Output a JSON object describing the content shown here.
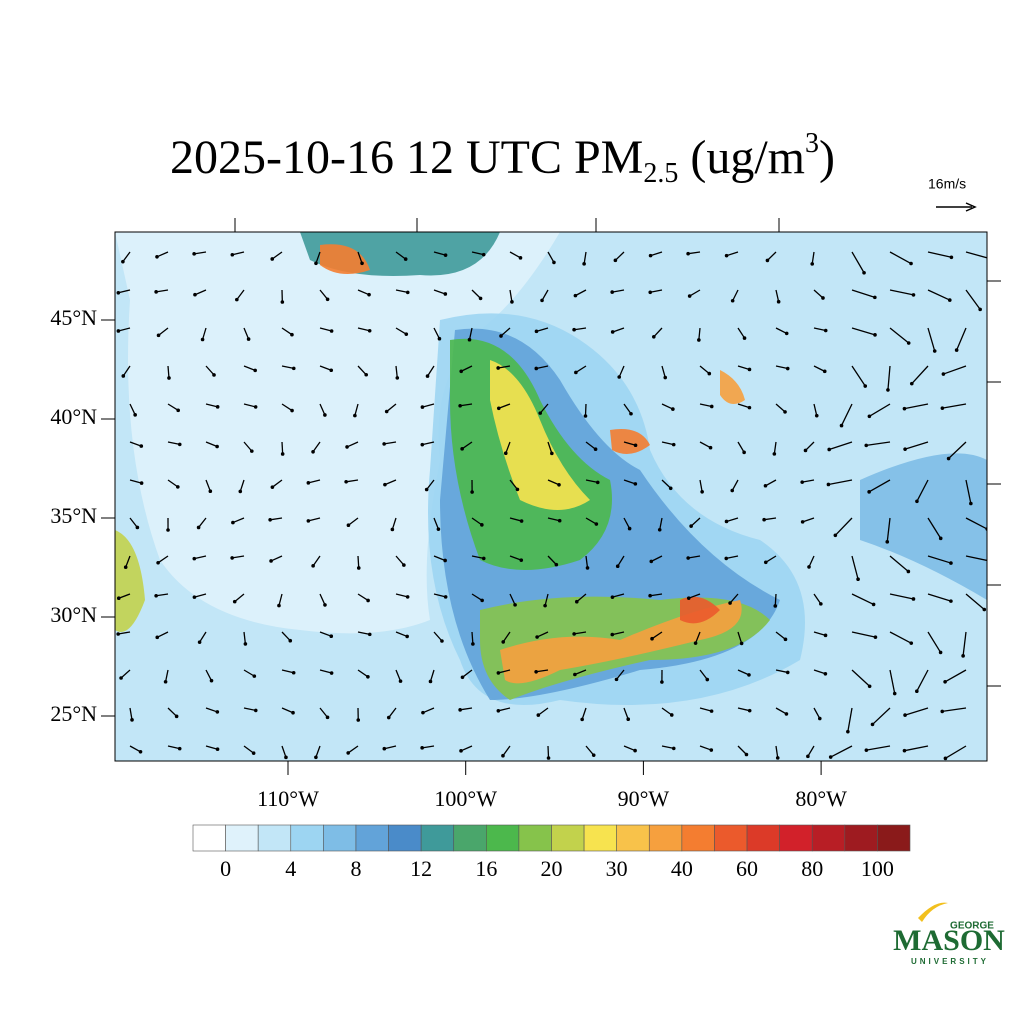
{
  "map": {
    "title": {
      "main": "2025-10-16 12 UTC PM",
      "sub": "2.5",
      "unit": " (ug/m",
      "sup": "3",
      "close": ")"
    },
    "reference_vector": "16m/s",
    "lat_ticks": [
      {
        "value": 45,
        "label": "45°N"
      },
      {
        "value": 40,
        "label": "40°N"
      },
      {
        "value": 35,
        "label": "35°N"
      },
      {
        "value": 30,
        "label": "30°N"
      },
      {
        "value": 25,
        "label": "25°N"
      }
    ],
    "lon_ticks": [
      {
        "value": -110,
        "label": "110°W"
      },
      {
        "value": -100,
        "label": "100°W"
      },
      {
        "value": -90,
        "label": "90°W"
      },
      {
        "value": -80,
        "label": "80°W"
      }
    ],
    "colorbar": {
      "labels": [
        0,
        4,
        8,
        12,
        16,
        20,
        30,
        40,
        60,
        80,
        100
      ],
      "colors": [
        "#ffffff",
        "#dff2fb",
        "#c2e6f7",
        "#9dd5f2",
        "#7ebde6",
        "#62a3d9",
        "#4a8bc9",
        "#3f9a9a",
        "#4aa66b",
        "#4cb84c",
        "#86c34b",
        "#c2d24c",
        "#f7e34f",
        "#f8c24a",
        "#f6a03e",
        "#f47d30",
        "#eb5a2c",
        "#dc3a28",
        "#d2212a",
        "#b81e25",
        "#9e1b20",
        "#8a1a1a"
      ]
    },
    "logo": {
      "top": "GEORGE",
      "name": "MASON",
      "bottom": "UNIVERSITY"
    }
  }
}
